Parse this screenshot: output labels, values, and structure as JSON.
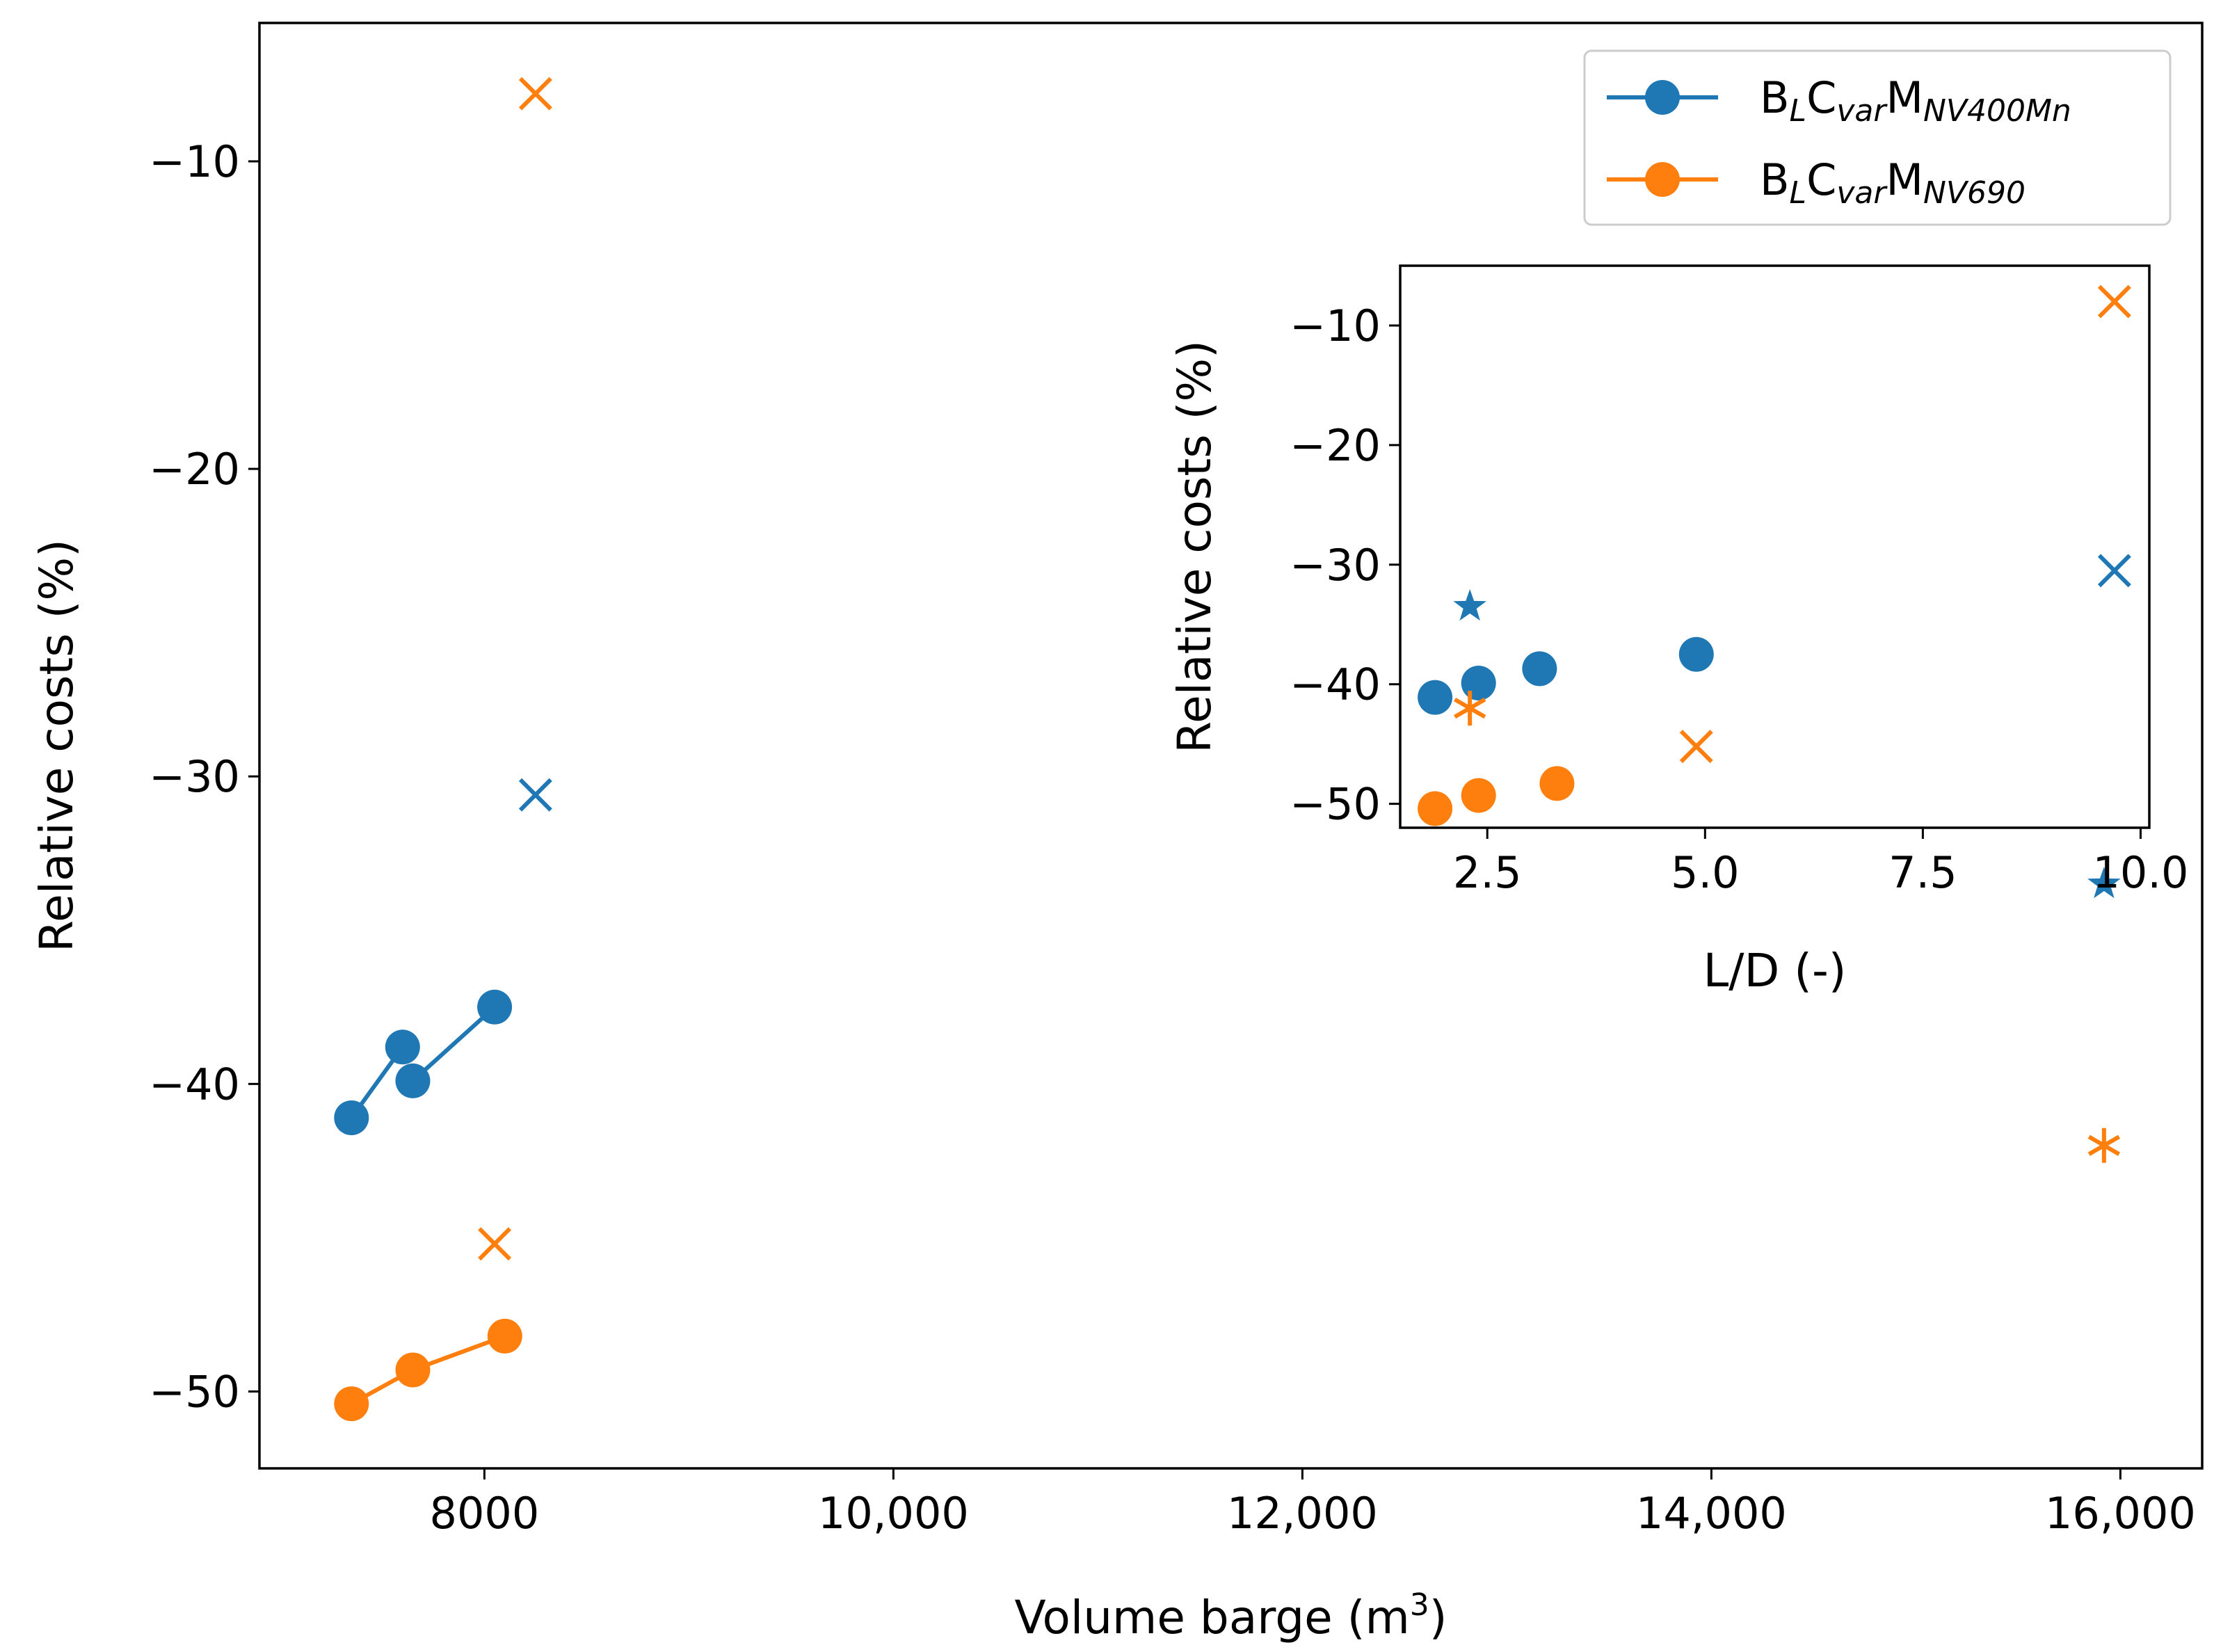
{
  "chart_data": [
    {
      "type": "line",
      "role": "main",
      "xlabel": "Volume barge (m",
      "xlabel_sup": "3",
      "xlabel_suffix": ")",
      "ylabel": "Relative costs (%)",
      "xlim": [
        6900,
        16400
      ],
      "ylim": [
        -52.5,
        -5.5
      ],
      "xticks": [
        8000,
        10000,
        12000,
        14000,
        16000
      ],
      "xtick_labels": [
        "8000",
        "10,000",
        "12,000",
        "14,000",
        "16,000"
      ],
      "yticks": [
        -10,
        -20,
        -30,
        -40,
        -50
      ],
      "ytick_labels": [
        "−10",
        "−20",
        "−30",
        "−40",
        "−50"
      ],
      "legend": {
        "placement": "top-right",
        "entries": [
          {
            "base": "B",
            "sub1": "L",
            "mid": "C",
            "sub2": "var",
            "mid2": "M",
            "sub3": "NV400Mn",
            "color": "#1f77b4"
          },
          {
            "base": "B",
            "sub1": "L",
            "mid": "C",
            "sub2": "var",
            "mid2": "M",
            "sub3": "NV690",
            "color": "#ff7f0e"
          }
        ]
      },
      "series": [
        {
          "name": "B_L C_var M_NV400Mn",
          "color": "#1f77b4",
          "marker": "circle",
          "line": true,
          "segments": [
            {
              "x": [
                7350,
                7600
              ],
              "y": [
                -41.1,
                -38.8
              ]
            },
            {
              "x": [
                7650,
                8050
              ],
              "y": [
                -39.9,
                -37.5
              ]
            }
          ]
        },
        {
          "name": "B_L C_var M_NV690",
          "color": "#ff7f0e",
          "marker": "circle",
          "line": true,
          "segments": [
            {
              "x": [
                7350,
                7650,
                8100
              ],
              "y": [
                -50.4,
                -49.3,
                -48.2
              ]
            }
          ]
        },
        {
          "name": "B_L C_var M_NV400Mn (x)",
          "color": "#1f77b4",
          "marker": "x",
          "line": false,
          "x": [
            8250
          ],
          "y": [
            -30.6
          ]
        },
        {
          "name": "B_L C_var M_NV690 (x)",
          "color": "#ff7f0e",
          "marker": "x",
          "line": false,
          "x": [
            8250,
            8050
          ],
          "y": [
            -7.8,
            -45.2
          ]
        },
        {
          "name": "B_L C_var M_NV400Mn (star)",
          "color": "#1f77b4",
          "marker": "star",
          "line": false,
          "x": [
            15920
          ],
          "y": [
            -33.5
          ]
        },
        {
          "name": "B_L C_var M_NV690 (asterisk)",
          "color": "#ff7f0e",
          "marker": "asterisk",
          "line": false,
          "x": [
            15920
          ],
          "y": [
            -42.0
          ]
        }
      ]
    },
    {
      "type": "scatter",
      "role": "inset",
      "xlabel": "L/D (-)",
      "ylabel": "Relative costs (%)",
      "xlim": [
        1.5,
        10.1
      ],
      "ylim": [
        -52,
        -5
      ],
      "xticks": [
        2.5,
        5.0,
        7.5,
        10.0
      ],
      "xtick_labels": [
        "2.5",
        "5.0",
        "7.5",
        "10.0"
      ],
      "yticks": [
        -10,
        -20,
        -30,
        -40,
        -50
      ],
      "ytick_labels": [
        "−10",
        "−20",
        "−30",
        "−40",
        "−50"
      ],
      "series": [
        {
          "name": "NV400Mn circles",
          "color": "#1f77b4",
          "marker": "circle",
          "x": [
            1.9,
            2.4,
            3.1,
            4.9
          ],
          "y": [
            -41.1,
            -39.9,
            -38.7,
            -37.5
          ]
        },
        {
          "name": "NV690 circles",
          "color": "#ff7f0e",
          "marker": "circle",
          "x": [
            1.9,
            2.4,
            3.3
          ],
          "y": [
            -50.4,
            -49.3,
            -48.3
          ]
        },
        {
          "name": "NV400Mn x",
          "color": "#1f77b4",
          "marker": "x",
          "x": [
            9.7
          ],
          "y": [
            -30.5
          ]
        },
        {
          "name": "NV690 x",
          "color": "#ff7f0e",
          "marker": "x",
          "x": [
            9.7,
            4.9
          ],
          "y": [
            -8.0,
            -45.2
          ]
        },
        {
          "name": "NV400Mn star",
          "color": "#1f77b4",
          "marker": "star",
          "x": [
            2.3
          ],
          "y": [
            -33.5
          ]
        },
        {
          "name": "NV690 asterisk",
          "color": "#ff7f0e",
          "marker": "asterisk",
          "x": [
            2.3
          ],
          "y": [
            -42.0
          ]
        }
      ]
    }
  ]
}
